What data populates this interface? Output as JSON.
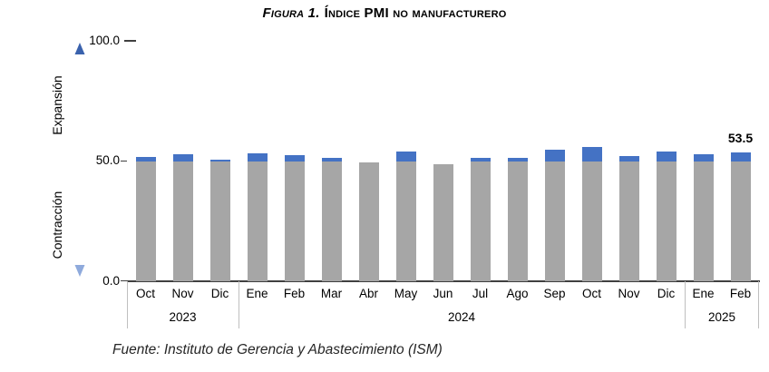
{
  "title": {
    "prefix": "Figura 1.",
    "main": "Índice PMI no manufacturero"
  },
  "axis_labels": {
    "expansion": "Expansión",
    "contraction": "Contracción"
  },
  "source": "Fuente: Instituto de Gerencia y Abastecimiento (ISM)",
  "chart_data": {
    "type": "bar",
    "title": "Figura 1. Índice PMI no manufacturero",
    "xlabel": "",
    "ylabel": "",
    "ylim": [
      0,
      100
    ],
    "grid": false,
    "legend": "none",
    "threshold": 50,
    "categories": [
      "Oct",
      "Nov",
      "Dic",
      "Ene",
      "Feb",
      "Mar",
      "Abr",
      "May",
      "Jun",
      "Jul",
      "Ago",
      "Sep",
      "Oct",
      "Nov",
      "Dic",
      "Ene",
      "Feb"
    ],
    "year_groups": [
      {
        "label": "2023",
        "start": 0,
        "end": 2
      },
      {
        "label": "2024",
        "start": 3,
        "end": 14
      },
      {
        "label": "2025",
        "start": 15,
        "end": 16
      }
    ],
    "values": [
      51.8,
      52.7,
      50.6,
      53.4,
      52.6,
      51.4,
      49.4,
      53.8,
      48.8,
      51.4,
      51.5,
      54.9,
      56.0,
      52.1,
      54.1,
      52.8,
      53.5
    ],
    "yticks": [
      {
        "value": 100,
        "label": "100.0"
      },
      {
        "value": 50,
        "label": "50.0"
      },
      {
        "value": 0,
        "label": "0.0"
      }
    ],
    "annotations": [
      {
        "index": 16,
        "text": "53.5"
      }
    ],
    "colors": {
      "bar_below_threshold": "#A6A6A6",
      "bar_above_threshold": "#4472C4",
      "arrow_top": "#3A62AD",
      "arrow_bottom": "#8FAADC",
      "axis": "#404040",
      "separator": "#BFBFBF"
    }
  }
}
